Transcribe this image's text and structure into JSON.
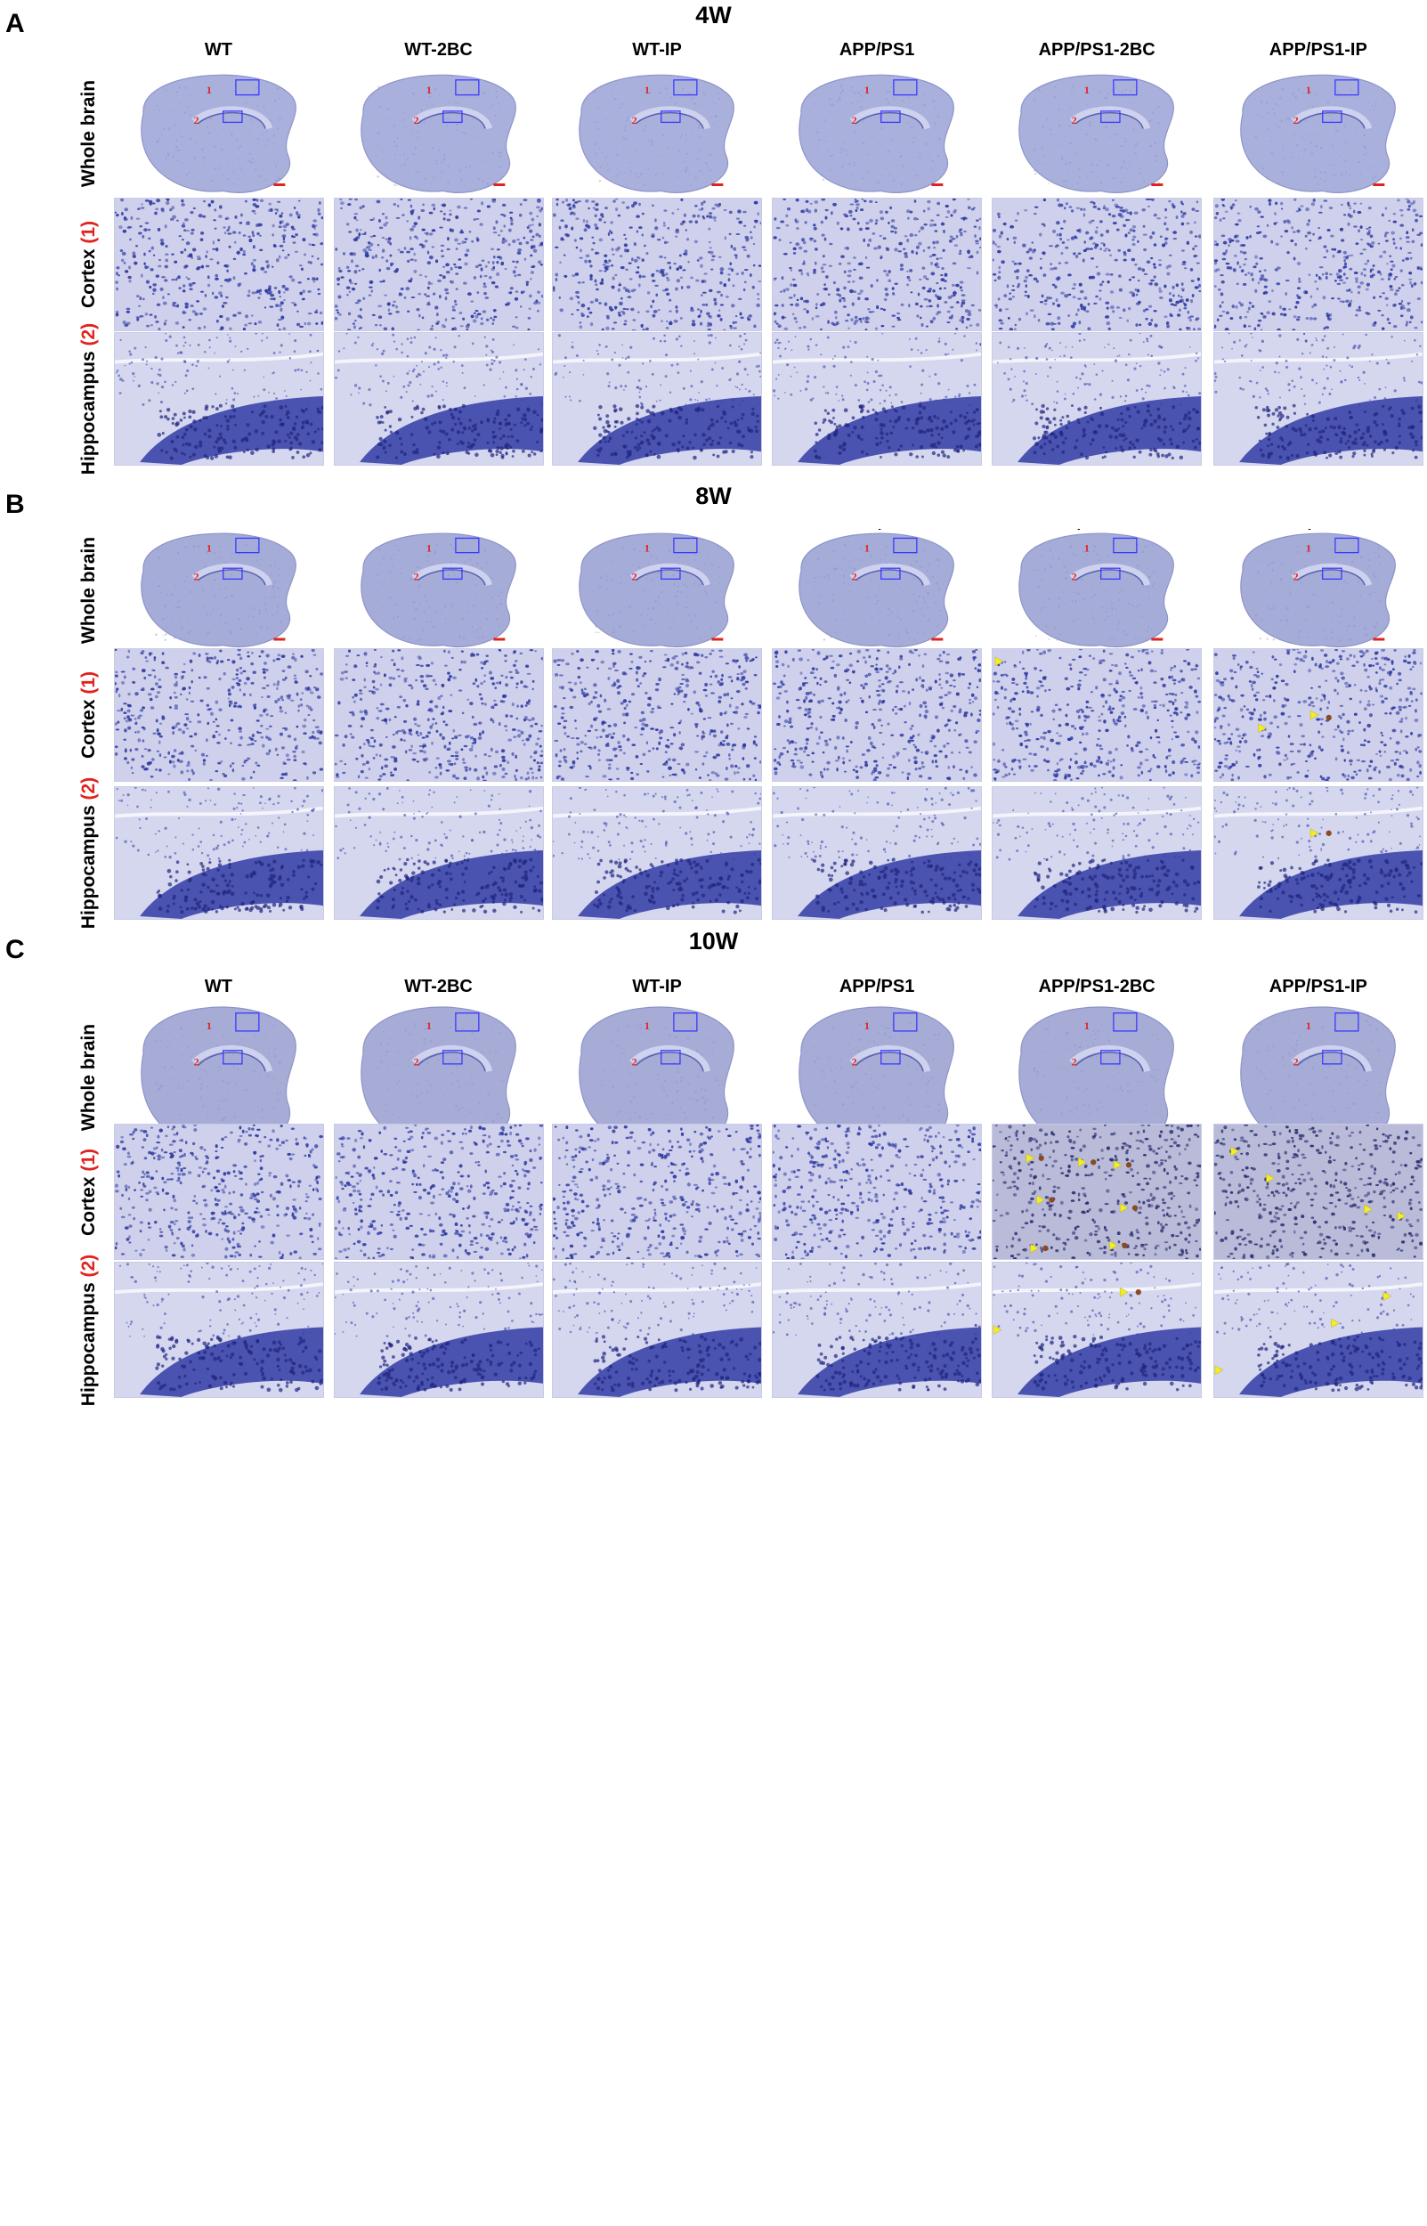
{
  "columns": [
    "WT",
    "WT-2BC",
    "WT-IP",
    "APP/PS1",
    "APP/PS1-2BC",
    "APP/PS1-IP"
  ],
  "row_labels": {
    "whole_brain": "Whole brain",
    "cortex": "Cortex",
    "cortex_num": "(1)",
    "hippocampus": "Hippocampus",
    "hippocampus_num": "(2)"
  },
  "roi_labels": {
    "cortex": "1",
    "hippocampus": "2"
  },
  "panels": [
    {
      "letter": "A",
      "title": "4W",
      "slice_tint": "#aab0dc"
    },
    {
      "letter": "B",
      "title": "8W",
      "slice_tint": "#a5acd8"
    },
    {
      "letter": "C",
      "title": "10W",
      "slice_tint": "#a7acd6"
    }
  ],
  "colors": {
    "stain": "#2f3aa0",
    "background_tissue": "#c9cbe8",
    "roi_box": "#3a3aff",
    "roi_number": "#e0231f",
    "scale_bar": "#e0231f",
    "arrowhead": "#f2ec2a",
    "plaque": "#8a4a24"
  },
  "icons": {
    "arrowhead": "yellow-arrowhead-icon",
    "scale_bar": "scale-bar-icon"
  }
}
